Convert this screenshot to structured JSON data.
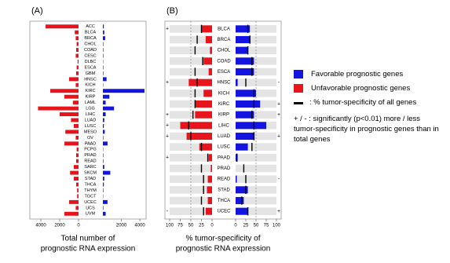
{
  "chart_data": [
    {
      "type": "mirror-bar",
      "title": "(A)",
      "xlabel": [
        "Total number of",
        "prognostic RNA expression"
      ],
      "categories": [
        "ACC",
        "BLCA",
        "BRCA",
        "CHOL",
        "COAD",
        "CESC",
        "DLBC",
        "ESCA",
        "GBM",
        "HNSC",
        "KICH",
        "KIRC",
        "KIRP",
        "LAML",
        "LGG",
        "LIHC",
        "LUAD",
        "LUSC",
        "MESO",
        "OV",
        "PAAD",
        "PCPG",
        "PRAD",
        "READ",
        "SARC",
        "SKCM",
        "STAD",
        "THCA",
        "THYM",
        "TGCT",
        "UCEC",
        "UCS",
        "UVM"
      ],
      "row_background": false,
      "grid": false,
      "panels": [
        {
          "side": "left",
          "xlim": [
            4500,
            0
          ],
          "xticks": [
            4000,
            2000,
            0
          ],
          "series": [
            {
              "color": "#e8141b",
              "values": [
                3500,
                400,
                300,
                200,
                250,
                300,
                100,
                200,
                250,
                1000,
                300,
                3000,
                1500,
                600,
                4300,
                2000,
                800,
                500,
                1400,
                300,
                1500,
                200,
                250,
                250,
                500,
                900,
                500,
                250,
                150,
                150,
                1000,
                300,
                1500
              ]
            }
          ]
        },
        {
          "side": "right",
          "xlim": [
            0,
            4500
          ],
          "xticks": [
            2000,
            4000
          ],
          "series": [
            {
              "color": "#1414e0",
              "values": [
                100,
                150,
                250,
                50,
                50,
                50,
                30,
                50,
                50,
                400,
                30,
                4500,
                700,
                300,
                1200,
                300,
                150,
                100,
                200,
                50,
                500,
                30,
                50,
                50,
                150,
                800,
                150,
                100,
                50,
                30,
                500,
                50,
                300
              ]
            }
          ]
        }
      ]
    },
    {
      "type": "mirror-bar",
      "title": "(B)",
      "xlabel": [
        "% tumor-specificity of",
        "prognostic RNA expression"
      ],
      "categories": [
        "BLCA",
        "BRCA",
        "CHOL",
        "COAD",
        "ESCA",
        "HNSC",
        "KICH",
        "KIRC",
        "KIRP",
        "LIHC",
        "LUAD",
        "LUSC",
        "PAAD",
        "PRAD",
        "READ",
        "STAD",
        "THCA",
        "UCEC"
      ],
      "row_background": true,
      "grid": true,
      "reference_name": ": % tumor-specificity of all genes",
      "note": "+ / - : significantly (p<0.01) more / less tumor-specificity in prognostic genes than in total genes",
      "panels": [
        {
          "side": "left",
          "xlim": [
            100,
            0
          ],
          "xticks": [
            100,
            75,
            50,
            25,
            0
          ],
          "series": [
            {
              "name": "Unfavorable prognostic genes",
              "color": "#e8141b",
              "values": [
                25,
                15,
                5,
                20,
                8,
                55,
                20,
                40,
                40,
                75,
                60,
                30,
                8,
                3,
                10,
                12,
                10,
                15
              ]
            }
          ],
          "reference": [
            25,
            35,
            40,
            22,
            40,
            35,
            40,
            40,
            45,
            55,
            50,
            25,
            10,
            25,
            20,
            20,
            25,
            20
          ],
          "significance": [
            "+",
            null,
            null,
            null,
            null,
            "+",
            null,
            null,
            "+",
            "+",
            "+",
            null,
            "+",
            null,
            null,
            null,
            null,
            "-"
          ]
        },
        {
          "side": "right",
          "xlim": [
            0,
            100
          ],
          "xticks": [
            0,
            25,
            50,
            75,
            100
          ],
          "series": [
            {
              "name": "Favorable prognostic genes",
              "color": "#1414e0",
              "values": [
                35,
                35,
                30,
                45,
                45,
                5,
                50,
                60,
                45,
                75,
                45,
                30,
                5,
                0,
                3,
                30,
                20,
                30
              ]
            }
          ],
          "reference": [
            30,
            35,
            30,
            40,
            40,
            25,
            45,
            45,
            40,
            45,
            45,
            40,
            3,
            20,
            25,
            25,
            15,
            30
          ],
          "significance": [
            null,
            null,
            null,
            null,
            null,
            "-",
            null,
            "+",
            "+",
            null,
            "+",
            null,
            null,
            null,
            "-",
            null,
            null,
            "+"
          ]
        }
      ]
    }
  ]
}
